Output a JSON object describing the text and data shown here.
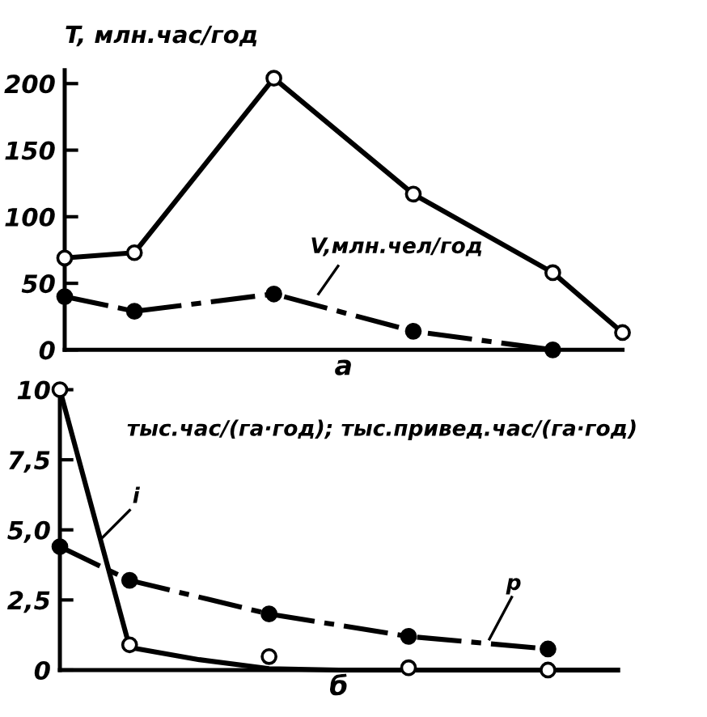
{
  "chart_data": [
    {
      "type": "line",
      "xlabel": "а",
      "ylabel": "T, млн.час/год",
      "categories": [
        null,
        null,
        null,
        null,
        null,
        null,
        null,
        null,
        null
      ],
      "ylim": [
        0,
        210
      ],
      "yticks": [
        0,
        50,
        100,
        150,
        200
      ],
      "tick_labels": "y",
      "grid": false,
      "legend": false,
      "series": [
        {
          "color": "#000000",
          "colors": [
            "#ffffff",
            "#ffffff",
            null,
            "#ffffff",
            null,
            "#ffffff",
            null,
            "#ffffff",
            "#ffffff"
          ],
          "marker": "circle",
          "line_style": "solid",
          "values": [
            69,
            73,
            null,
            204,
            null,
            117,
            null,
            58,
            13
          ]
        },
        {
          "color": "#000000",
          "marker": "circle",
          "line_style": "dashed",
          "values": [
            40,
            29,
            null,
            42,
            null,
            14,
            null,
            0,
            null
          ]
        }
      ],
      "annotations": [
        "V,млн.чел/год"
      ]
    },
    {
      "type": "line",
      "xlabel": "б",
      "ylabel": "тыс.час/(га·год); тыс.привед.час/(га·год)",
      "categories": [
        null,
        null,
        null,
        null,
        null,
        null,
        null,
        null,
        null
      ],
      "ylim": [
        0,
        10
      ],
      "yticks": [
        0,
        {
          "value": 2.5,
          "label": "2,5"
        },
        {
          "value": 5,
          "label": "5,0"
        },
        {
          "value": 7.5,
          "label": "7,5"
        },
        10
      ],
      "tick_labels": "y",
      "grid": false,
      "legend": false,
      "series": [
        {
          "type": "scatter",
          "color": "#000000",
          "colors": [
            "#ffffff",
            "#ffffff",
            null,
            "#ffffff",
            null,
            "#ffffff",
            null,
            "#ffffff",
            null
          ],
          "marker": "circle",
          "values": [
            10,
            0.9,
            null,
            0.48,
            null,
            0.08,
            null,
            0,
            null
          ]
        },
        {
          "type": "line",
          "color": "#000000",
          "marker": "none",
          "line_style": "solid",
          "values": [
            10,
            0.81,
            0.37,
            0.05,
            0,
            0,
            0,
            0,
            0
          ]
        },
        {
          "type": "line",
          "color": "#000000",
          "marker": "circle",
          "line_style": "dashed",
          "values": [
            4.4,
            3.2,
            null,
            2.0,
            null,
            1.2,
            null,
            0.75,
            null
          ]
        }
      ],
      "annotations": [
        "i",
        "p"
      ]
    }
  ]
}
